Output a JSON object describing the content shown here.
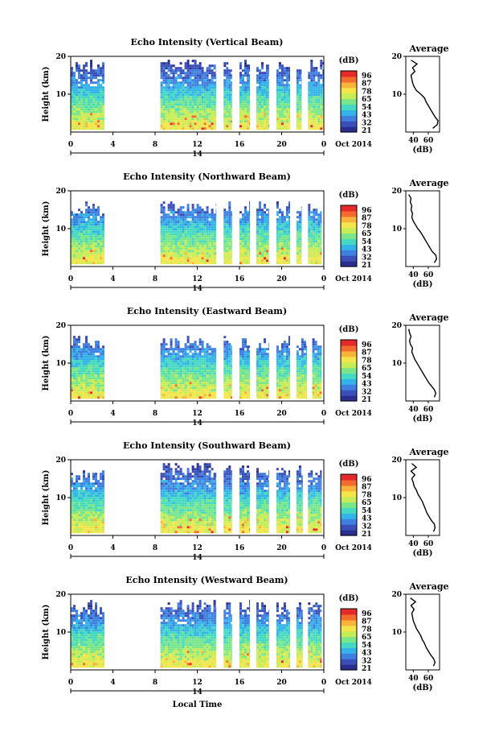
{
  "figure": {
    "xlabel": "Local Time",
    "date_label": "14",
    "month_label": "Oct 2014"
  },
  "colorbar": {
    "unit": "(dB)",
    "ticks": [
      "96",
      "87",
      "78",
      "65",
      "54",
      "43",
      "32",
      "21"
    ],
    "colors": [
      "#2a2f8f",
      "#3a4fb8",
      "#3f7fe0",
      "#34b3e8",
      "#46d9c2",
      "#7ae68a",
      "#c6ec57",
      "#f4e54a",
      "#f7b33b",
      "#f36b2e",
      "#e4292a"
    ]
  },
  "chart_data": [
    {
      "type": "heatmap",
      "title": "Echo Intensity (Vertical Beam)",
      "xlabel": "",
      "ylabel": "Height (km)",
      "xlim": [
        0,
        24
      ],
      "ylim": [
        0,
        20
      ],
      "xticks": [
        "0",
        "4",
        "8",
        "12",
        "16",
        "20",
        "0"
      ],
      "yticks": [
        "10",
        "20"
      ],
      "colorbar_label": "(dB)",
      "data_intervals_hours": [
        [
          0,
          3.2
        ],
        [
          8.5,
          13.8
        ],
        [
          14.5,
          15.3
        ],
        [
          16,
          17
        ],
        [
          17.6,
          18.8
        ],
        [
          19.5,
          20.8
        ],
        [
          21.4,
          21.9
        ],
        [
          22.5,
          24
        ]
      ],
      "top_km": [
        19,
        19,
        19,
        19,
        19,
        19,
        19,
        19
      ],
      "average_profile": {
        "title": "Average",
        "xlabel": "(dB)",
        "xticks": [
          "40",
          "60"
        ],
        "yticks": [
          "10",
          "20"
        ],
        "xlim": [
          30,
          75
        ],
        "ylim": [
          0,
          20
        ],
        "height_km": [
          1,
          2,
          3,
          4,
          5,
          6,
          7,
          8,
          9,
          10,
          11,
          12,
          13,
          14,
          15,
          16,
          17,
          18,
          19
        ],
        "db": [
          66,
          72,
          73,
          69,
          66,
          63,
          60,
          57,
          55,
          50,
          44,
          41,
          39,
          38,
          37,
          42,
          39,
          45,
          37
        ]
      }
    },
    {
      "type": "heatmap",
      "title": "Echo Intensity (Northward Beam)",
      "xlabel": "",
      "ylabel": "Height (km)",
      "xlim": [
        0,
        24
      ],
      "ylim": [
        0,
        20
      ],
      "xticks": [
        "0",
        "4",
        "8",
        "12",
        "16",
        "20",
        "0"
      ],
      "yticks": [
        "10",
        "20"
      ],
      "colorbar_label": "(dB)",
      "data_intervals_hours": [
        [
          0,
          3.2
        ],
        [
          8.5,
          13.8
        ],
        [
          14.5,
          15.3
        ],
        [
          16,
          17
        ],
        [
          17.6,
          18.8
        ],
        [
          19.5,
          20.8
        ],
        [
          21.4,
          21.9
        ],
        [
          22.5,
          23.8
        ]
      ],
      "top_km": [
        17,
        17,
        17,
        17,
        17,
        17,
        17,
        17
      ],
      "average_profile": {
        "title": "Average",
        "xlabel": "(dB)",
        "xticks": [
          "40",
          "60"
        ],
        "yticks": [
          "10",
          "20"
        ],
        "xlim": [
          30,
          75
        ],
        "ylim": [
          0,
          20
        ],
        "height_km": [
          1,
          2,
          3,
          4,
          5,
          6,
          7,
          8,
          9,
          10,
          11,
          12,
          13,
          14,
          15,
          16,
          17,
          18,
          19
        ],
        "db": [
          68,
          71,
          70,
          65,
          62,
          59,
          56,
          53,
          50,
          46,
          43,
          40,
          38,
          39,
          37,
          38,
          36,
          37,
          34
        ]
      }
    },
    {
      "type": "heatmap",
      "title": "Echo Intensity (Eastward Beam)",
      "xlabel": "",
      "ylabel": "Height (km)",
      "xlim": [
        0,
        24
      ],
      "ylim": [
        0,
        20
      ],
      "xticks": [
        "0",
        "4",
        "8",
        "12",
        "16",
        "20",
        "0"
      ],
      "yticks": [
        "10",
        "20"
      ],
      "colorbar_label": "(dB)",
      "data_intervals_hours": [
        [
          0,
          3.2
        ],
        [
          8.5,
          13.8
        ],
        [
          14.5,
          15.3
        ],
        [
          16,
          17
        ],
        [
          17.6,
          18.8
        ],
        [
          19.5,
          20.8
        ],
        [
          21.4,
          22.4
        ],
        [
          22.9,
          23.8
        ]
      ],
      "top_km": [
        17,
        17,
        17,
        17,
        17,
        17,
        17,
        17
      ],
      "average_profile": {
        "title": "Average",
        "xlabel": "(dB)",
        "xticks": [
          "40",
          "60"
        ],
        "yticks": [
          "10",
          "20"
        ],
        "xlim": [
          30,
          75
        ],
        "ylim": [
          0,
          20
        ],
        "height_km": [
          1,
          2,
          3,
          4,
          5,
          6,
          7,
          8,
          9,
          10,
          11,
          12,
          13,
          14,
          15,
          16,
          17,
          18,
          19
        ],
        "db": [
          68,
          70,
          68,
          64,
          60,
          57,
          54,
          51,
          48,
          45,
          42,
          40,
          38,
          39,
          36,
          35,
          37,
          35,
          34
        ]
      }
    },
    {
      "type": "heatmap",
      "title": "Echo Intensity (Southward Beam)",
      "xlabel": "",
      "ylabel": "Height (km)",
      "xlim": [
        0,
        24
      ],
      "ylim": [
        0,
        20
      ],
      "xticks": [
        "0",
        "4",
        "8",
        "12",
        "16",
        "20",
        "0"
      ],
      "yticks": [
        "10",
        "20"
      ],
      "colorbar_label": "(dB)",
      "data_intervals_hours": [
        [
          0,
          3.2
        ],
        [
          8.5,
          13.8
        ],
        [
          14.5,
          15.3
        ],
        [
          16,
          17
        ],
        [
          17.6,
          18.8
        ],
        [
          19.5,
          20.8
        ],
        [
          21.4,
          22
        ],
        [
          22.5,
          23.8
        ]
      ],
      "top_km": [
        17,
        19,
        19,
        19,
        19,
        19,
        19,
        18
      ],
      "average_profile": {
        "title": "Average",
        "xlabel": "(dB)",
        "xticks": [
          "40",
          "60"
        ],
        "yticks": [
          "10",
          "20"
        ],
        "xlim": [
          30,
          75
        ],
        "ylim": [
          0,
          20
        ],
        "height_km": [
          1,
          2,
          3,
          4,
          5,
          6,
          7,
          8,
          9,
          10,
          11,
          12,
          13,
          14,
          15,
          16,
          17,
          18,
          19
        ],
        "db": [
          67,
          69,
          68,
          64,
          61,
          58,
          56,
          54,
          52,
          49,
          46,
          44,
          41,
          40,
          38,
          42,
          37,
          44,
          38
        ]
      }
    },
    {
      "type": "heatmap",
      "title": "Echo Intensity (Westward Beam)",
      "xlabel": "",
      "ylabel": "Height (km)",
      "xlim": [
        0,
        24
      ],
      "ylim": [
        0,
        20
      ],
      "xticks": [
        "0",
        "4",
        "8",
        "12",
        "16",
        "20",
        "0"
      ],
      "yticks": [
        "10",
        "20"
      ],
      "colorbar_label": "(dB)",
      "data_intervals_hours": [
        [
          0,
          3.2
        ],
        [
          8.5,
          13.8
        ],
        [
          14.5,
          15.3
        ],
        [
          16,
          17
        ],
        [
          17.6,
          18.8
        ],
        [
          19.5,
          20.8
        ],
        [
          21.4,
          22
        ],
        [
          22.5,
          23.8
        ]
      ],
      "top_km": [
        18,
        18,
        18,
        18,
        18,
        18,
        18,
        18
      ],
      "average_profile": {
        "title": "Average",
        "xlabel": "(dB)",
        "xticks": [
          "40",
          "60"
        ],
        "yticks": [
          "10",
          "20"
        ],
        "xlim": [
          30,
          75
        ],
        "ylim": [
          0,
          20
        ],
        "height_km": [
          1,
          2,
          3,
          4,
          5,
          6,
          7,
          8,
          9,
          10,
          11,
          12,
          13,
          14,
          15,
          16,
          17,
          18,
          19
        ],
        "db": [
          67,
          69,
          67,
          63,
          60,
          57,
          55,
          52,
          50,
          47,
          44,
          42,
          40,
          39,
          38,
          41,
          37,
          43,
          36
        ]
      }
    }
  ]
}
